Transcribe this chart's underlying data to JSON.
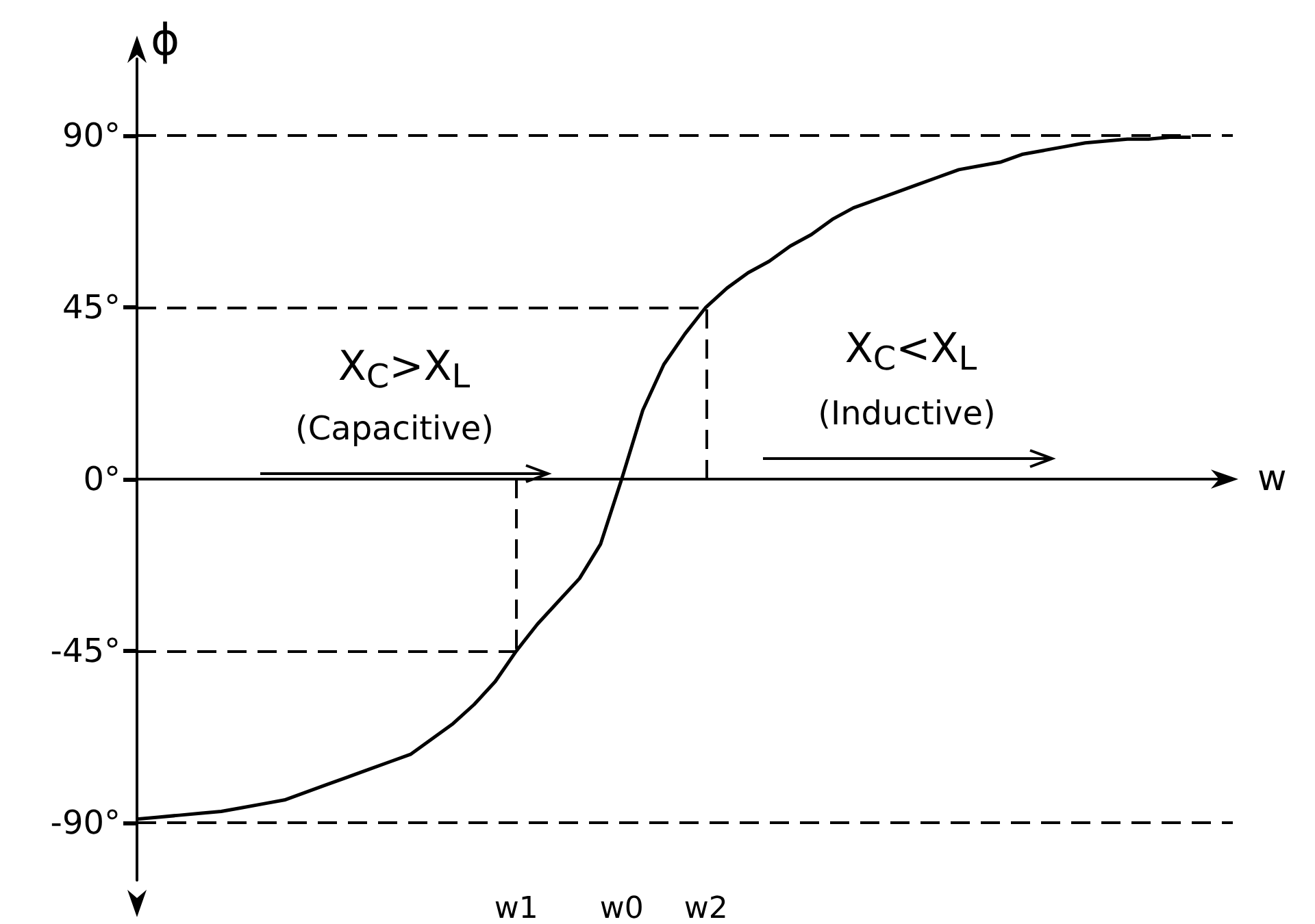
{
  "chart_data": {
    "type": "line",
    "xlabel": "w",
    "ylabel": "ϕ",
    "categories": [
      null,
      null,
      null,
      null,
      null,
      null,
      null,
      null,
      null,
      null,
      null,
      null,
      null,
      null,
      null,
      null,
      null,
      null,
      "w1",
      null,
      null,
      null,
      null,
      "w0",
      null,
      null,
      null,
      "w2",
      null,
      null,
      null,
      null,
      null,
      null,
      null,
      null,
      null,
      null,
      null,
      null,
      null,
      null,
      null,
      null,
      null,
      null,
      null,
      null,
      null,
      null,
      null,
      null,
      null
    ],
    "series": [
      {
        "color": "#000000",
        "values": [
          -89,
          -88.5,
          -88,
          -87.5,
          -87,
          -86,
          -85,
          -84,
          -82,
          -80,
          -78,
          -76,
          -74,
          -72,
          -68,
          -64,
          -59,
          -53,
          -45,
          -38,
          -32,
          -26,
          -17,
          0,
          18,
          30,
          38,
          45,
          50,
          54,
          57,
          61,
          64,
          68,
          71,
          73,
          75,
          77,
          79,
          81,
          82,
          83,
          85,
          86,
          87,
          88,
          88.5,
          89,
          89,
          89.5,
          89.5,
          null,
          null
        ]
      }
    ],
    "ylim": [
      -105,
      110
    ],
    "yticks": [
      {
        "value": 90,
        "label": "90°"
      },
      {
        "value": 45,
        "label": "45°"
      },
      {
        "value": 0,
        "label": "0°"
      },
      {
        "value": -45,
        "label": "-45°"
      },
      {
        "value": -90,
        "label": "-90°"
      }
    ],
    "ref_lines": [
      {
        "axis": "y",
        "value": 90,
        "line_style": "dashed"
      },
      {
        "axis": "y",
        "value": 45,
        "line_style": "dashed"
      },
      {
        "axis": "y",
        "value": -45,
        "line_style": "dashed"
      },
      {
        "axis": "y",
        "value": -90,
        "line_style": "dashed"
      },
      {
        "axis": "x",
        "value": "w1",
        "line_style": "dashed"
      },
      {
        "axis": "x",
        "value": "w2",
        "line_style": "dashed"
      }
    ],
    "annotations": [
      "X$_{C}$>X$_{L}$",
      "(Capacitive)",
      "X$_{C}$<X$_{L}$",
      "(Inductive)"
    ],
    "grid": false
  }
}
